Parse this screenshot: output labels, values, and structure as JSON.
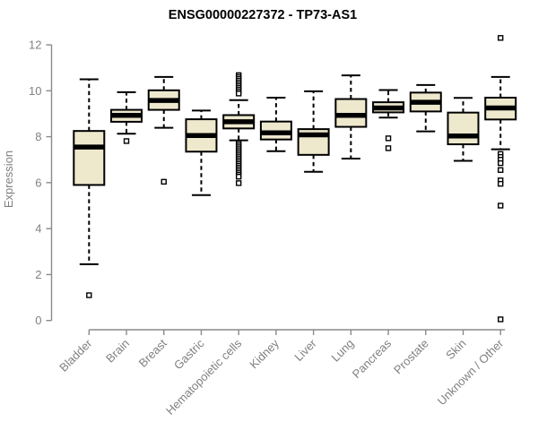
{
  "page": {
    "background": "#ffffff"
  },
  "chart_data": {
    "type": "boxplot",
    "title": "ENSG00000227372 - TP73-AS1",
    "ylabel": "Expression",
    "xlabel": "",
    "ylim": [
      0,
      12
    ],
    "yticks": [
      0,
      2,
      4,
      6,
      8,
      10,
      12
    ],
    "grid": false,
    "legend": "none",
    "categories": [
      "Bladder",
      "Brain",
      "Breast",
      "Gastric",
      "Hematopoietic cells",
      "Kidney",
      "Liver",
      "Lung",
      "Pancreas",
      "Prostate",
      "Skin",
      "Unknown / Other"
    ],
    "series": [
      {
        "category": "Bladder",
        "low": 2.45,
        "q1": 5.9,
        "median": 7.55,
        "q3": 8.25,
        "high": 10.5,
        "outliers": [
          1.1
        ]
      },
      {
        "category": "Brain",
        "low": 8.13,
        "q1": 8.65,
        "median": 8.93,
        "q3": 9.17,
        "high": 9.94,
        "outliers": [
          7.81
        ]
      },
      {
        "category": "Breast",
        "low": 8.39,
        "q1": 9.17,
        "median": 9.58,
        "q3": 10.02,
        "high": 10.6,
        "outliers": [
          6.04
        ]
      },
      {
        "category": "Gastric",
        "low": 5.46,
        "q1": 7.35,
        "median": 8.05,
        "q3": 8.76,
        "high": 9.14,
        "outliers": []
      },
      {
        "category": "Hematopoietic cells",
        "low": 7.84,
        "q1": 8.36,
        "median": 8.65,
        "q3": 8.94,
        "high": 9.59,
        "outliers": [
          10.68,
          10.6,
          10.52,
          10.44,
          10.36,
          10.28,
          10.2,
          10.12,
          10.04,
          9.96,
          9.88,
          7.7,
          7.62,
          7.54,
          7.46,
          7.38,
          7.3,
          7.22,
          7.14,
          7.06,
          6.98,
          6.9,
          6.82,
          6.74,
          6.66,
          6.58,
          6.5,
          6.42,
          6.34,
          6.26,
          5.98
        ]
      },
      {
        "category": "Kidney",
        "low": 7.37,
        "q1": 7.88,
        "median": 8.17,
        "q3": 8.66,
        "high": 9.7,
        "outliers": []
      },
      {
        "category": "Liver",
        "low": 6.47,
        "q1": 7.21,
        "median": 8.08,
        "q3": 8.33,
        "high": 9.98,
        "outliers": []
      },
      {
        "category": "Lung",
        "low": 7.05,
        "q1": 8.43,
        "median": 8.93,
        "q3": 9.64,
        "high": 10.67,
        "outliers": []
      },
      {
        "category": "Pancreas",
        "low": 8.83,
        "q1": 9.06,
        "median": 9.25,
        "q3": 9.5,
        "high": 10.03,
        "outliers": [
          7.93,
          7.5
        ]
      },
      {
        "category": "Prostate",
        "low": 8.23,
        "q1": 9.1,
        "median": 9.5,
        "q3": 9.92,
        "high": 10.25,
        "outliers": []
      },
      {
        "category": "Skin",
        "low": 6.95,
        "q1": 7.67,
        "median": 8.03,
        "q3": 9.05,
        "high": 9.69,
        "outliers": []
      },
      {
        "category": "Unknown / Other",
        "low": 7.45,
        "q1": 8.75,
        "median": 9.25,
        "q3": 9.7,
        "high": 10.6,
        "outliers": [
          12.3,
          7.25,
          7.12,
          7.0,
          6.85,
          6.55,
          6.1,
          5.95,
          5.0,
          0.05
        ]
      }
    ],
    "colors": {
      "box_fill": "#EEE8CD",
      "box_border": "#000000",
      "median": "#000000",
      "whisker": "#000000",
      "outlier_fill": "#ffffff",
      "outlier_border": "#000000",
      "axis": "#8a8a8a",
      "tick_label": "#808080",
      "title": "#000000"
    }
  }
}
